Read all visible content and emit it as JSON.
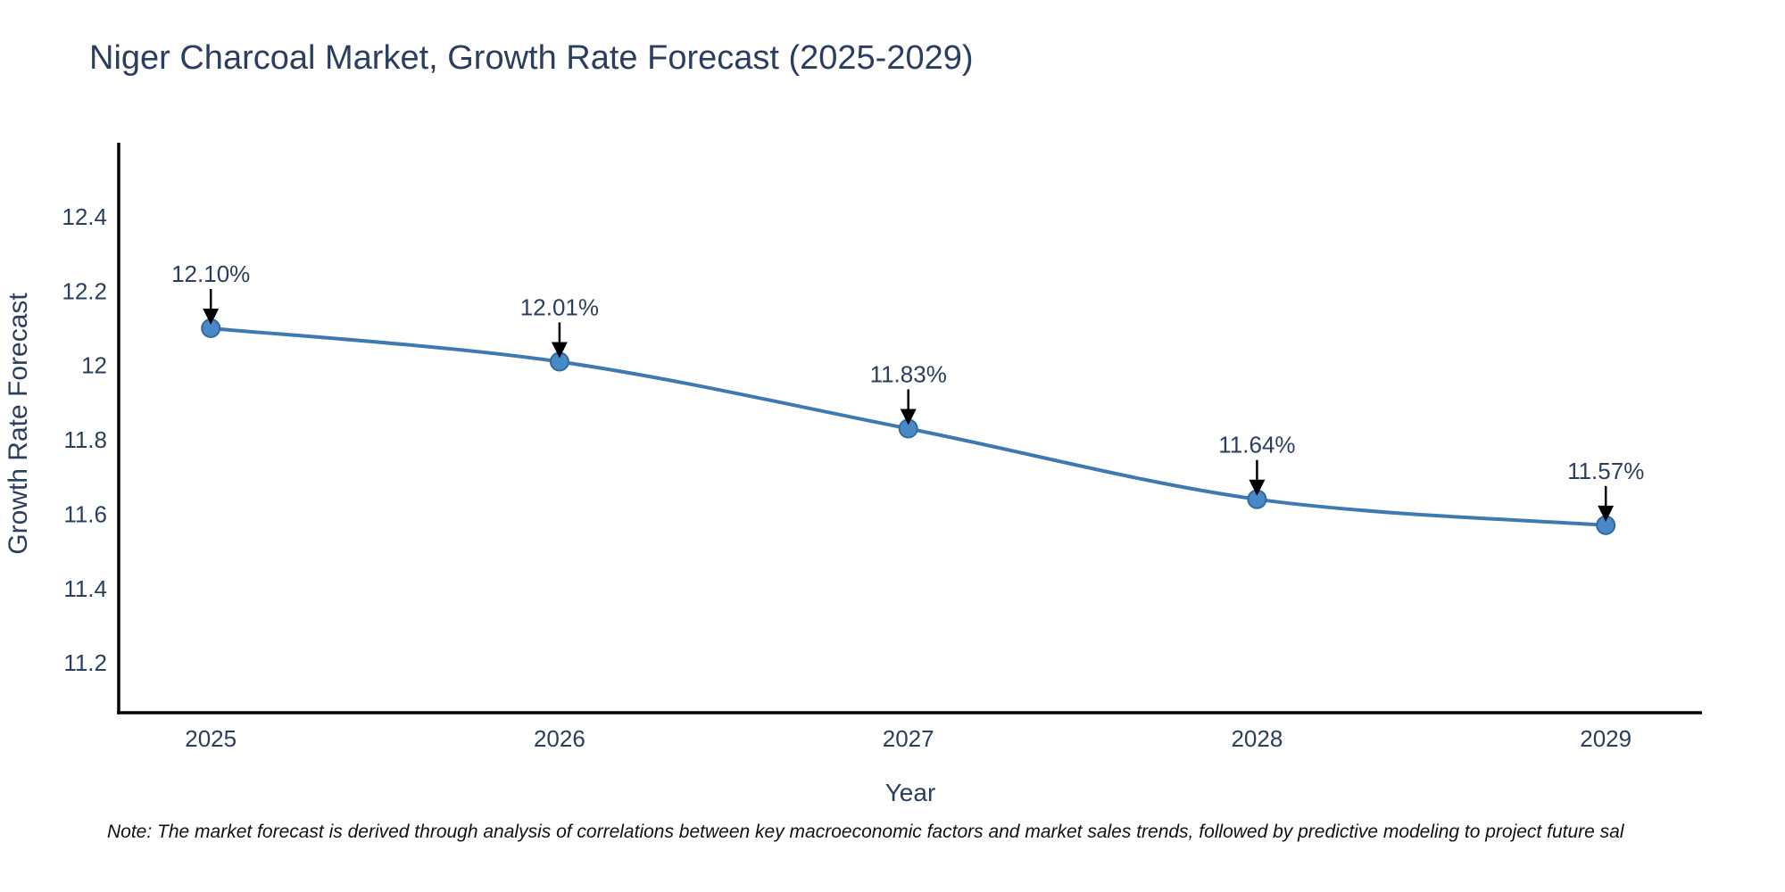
{
  "title": "Niger Charcoal Market, Growth Rate Forecast (2025-2029)",
  "note": "Note: The market forecast is derived through analysis of correlations between key macroeconomic factors and market sales trends, followed by predictive modeling to project future sal",
  "chart_data": {
    "type": "line",
    "title": "Niger Charcoal Market, Growth Rate Forecast (2025-2029)",
    "xlabel": "Year",
    "ylabel": "Growth Rate Forecast",
    "x": [
      2025,
      2026,
      2027,
      2028,
      2029
    ],
    "values": [
      12.1,
      12.01,
      11.83,
      11.64,
      11.57
    ],
    "point_labels": [
      "12.10%",
      "12.01%",
      "11.83%",
      "11.64%",
      "11.57%"
    ],
    "xtick_labels": [
      "2025",
      "2026",
      "2027",
      "2028",
      "2029"
    ],
    "yticks": [
      11.2,
      11.4,
      11.6,
      11.8,
      12,
      12.2,
      12.4
    ],
    "ytick_labels": [
      "11.2",
      "11.4",
      "11.6",
      "11.8",
      "12",
      "12.2",
      "12.4"
    ],
    "xlim": [
      2024.736,
      2029.276
    ],
    "ylim": [
      11.066,
      12.599
    ],
    "grid": false,
    "legend": "none",
    "line_shape": "spline",
    "colors": {
      "line": "#3d7ab2",
      "marker_fill": "#4a89c8",
      "marker_edge": "#316a9e",
      "axis": "#000000",
      "text": "#2a3f5f",
      "arrow": "#000000",
      "note_text": "#111111",
      "background": "#ffffff"
    }
  }
}
